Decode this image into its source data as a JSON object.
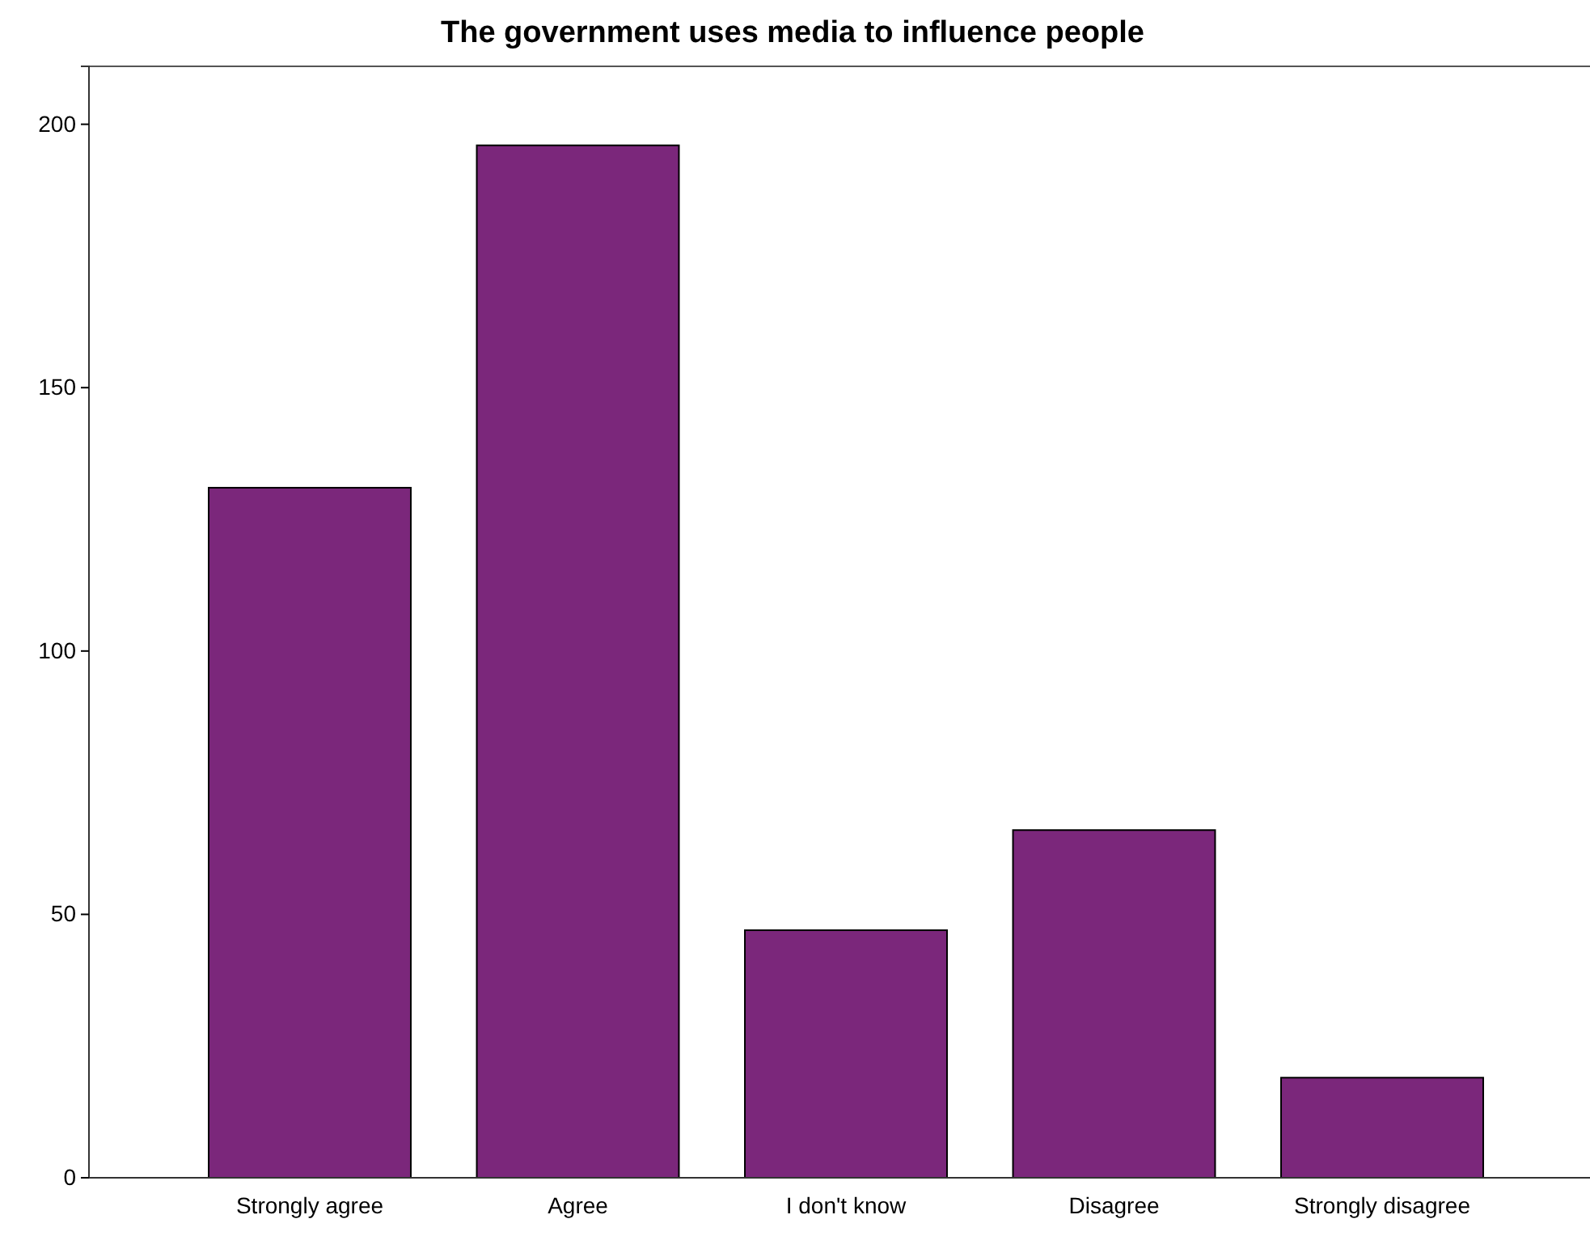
{
  "chart_data": {
    "type": "bar",
    "title": "The government uses media to influence people",
    "categories": [
      "Strongly agree",
      "Agree",
      "I don't know",
      "Disagree",
      "Strongly disagree"
    ],
    "values": [
      131,
      196,
      47,
      66,
      19
    ],
    "color": "#7b277b",
    "ylim": [
      0,
      211
    ],
    "yticks": [
      0,
      50,
      100,
      150,
      200
    ],
    "grid": false
  }
}
